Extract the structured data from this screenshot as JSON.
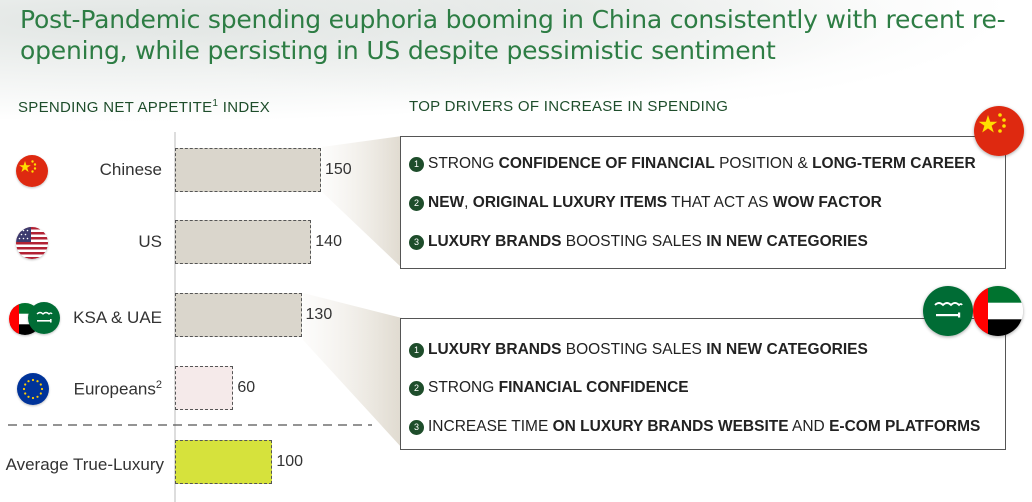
{
  "title": "Post-Pandemic spending euphoria booming in China consistently with recent re-opening, while persisting in US despite pessimistic sentiment",
  "left_header": {
    "text": "SPENDING NET APPETITE",
    "sup": "1",
    "suffix": " INDEX"
  },
  "right_header": "TOP DRIVERS OF INCREASE IN SPENDING",
  "colors": {
    "bar_default": "#dad6cc",
    "bar_europeans": "#f5eaea",
    "bar_average": "#d6e23c",
    "title_green": "#2d7d44",
    "dark_green": "#1e4d2b"
  },
  "icons": {
    "chinese": "china-flag-icon",
    "us": "us-flag-icon",
    "ksa_uae": "ksa-uae-flags-icon",
    "europeans": "eu-flag-icon"
  },
  "chart_data": {
    "type": "bar",
    "orientation": "horizontal",
    "categories": [
      "Chinese",
      "US",
      "KSA & UAE",
      "Europeans",
      "Average True-Luxury"
    ],
    "category_sups": [
      "",
      "",
      "",
      "2",
      ""
    ],
    "values": [
      150,
      140,
      130,
      60,
      100
    ],
    "value_labels": [
      "150",
      "140",
      "130",
      "60",
      "100"
    ],
    "xlim": [
      0,
      160
    ],
    "grid": false,
    "title": "SPENDING NET APPETITE INDEX"
  },
  "drivers": {
    "china": [
      {
        "num": "1",
        "segments": [
          {
            "t": "STRONG ",
            "b": false
          },
          {
            "t": "CONFIDENCE OF FINANCIAL",
            "b": true
          },
          {
            "t": " POSITION & ",
            "b": false
          },
          {
            "t": "LONG-TERM CAREER",
            "b": true
          }
        ]
      },
      {
        "num": "2",
        "segments": [
          {
            "t": "NEW",
            "b": true
          },
          {
            "t": ", ",
            "b": false
          },
          {
            "t": "ORIGINAL LUXURY ITEMS",
            "b": true
          },
          {
            "t": " THAT ACT AS ",
            "b": false
          },
          {
            "t": "WOW FACTOR",
            "b": true
          }
        ]
      },
      {
        "num": "3",
        "segments": [
          {
            "t": "LUXURY BRANDS",
            "b": true
          },
          {
            "t": " BOOSTING SALES ",
            "b": false
          },
          {
            "t": "IN NEW CATEGORIES",
            "b": true
          }
        ]
      }
    ],
    "ksa_uae": [
      {
        "num": "1",
        "segments": [
          {
            "t": "LUXURY BRANDS",
            "b": true
          },
          {
            "t": " BOOSTING SALES ",
            "b": false
          },
          {
            "t": "IN NEW CATEGORIES",
            "b": true
          }
        ]
      },
      {
        "num": "2",
        "segments": [
          {
            "t": "STRONG ",
            "b": false
          },
          {
            "t": "FINANCIAL CONFIDENCE",
            "b": true
          }
        ]
      },
      {
        "num": "3",
        "segments": [
          {
            "t": "INCREASE TIME ",
            "b": false
          },
          {
            "t": "ON LUXURY BRANDS WEBSITE",
            "b": true
          },
          {
            "t": " AND ",
            "b": false
          },
          {
            "t": "E-COM PLATFORMS",
            "b": true
          }
        ]
      }
    ]
  }
}
